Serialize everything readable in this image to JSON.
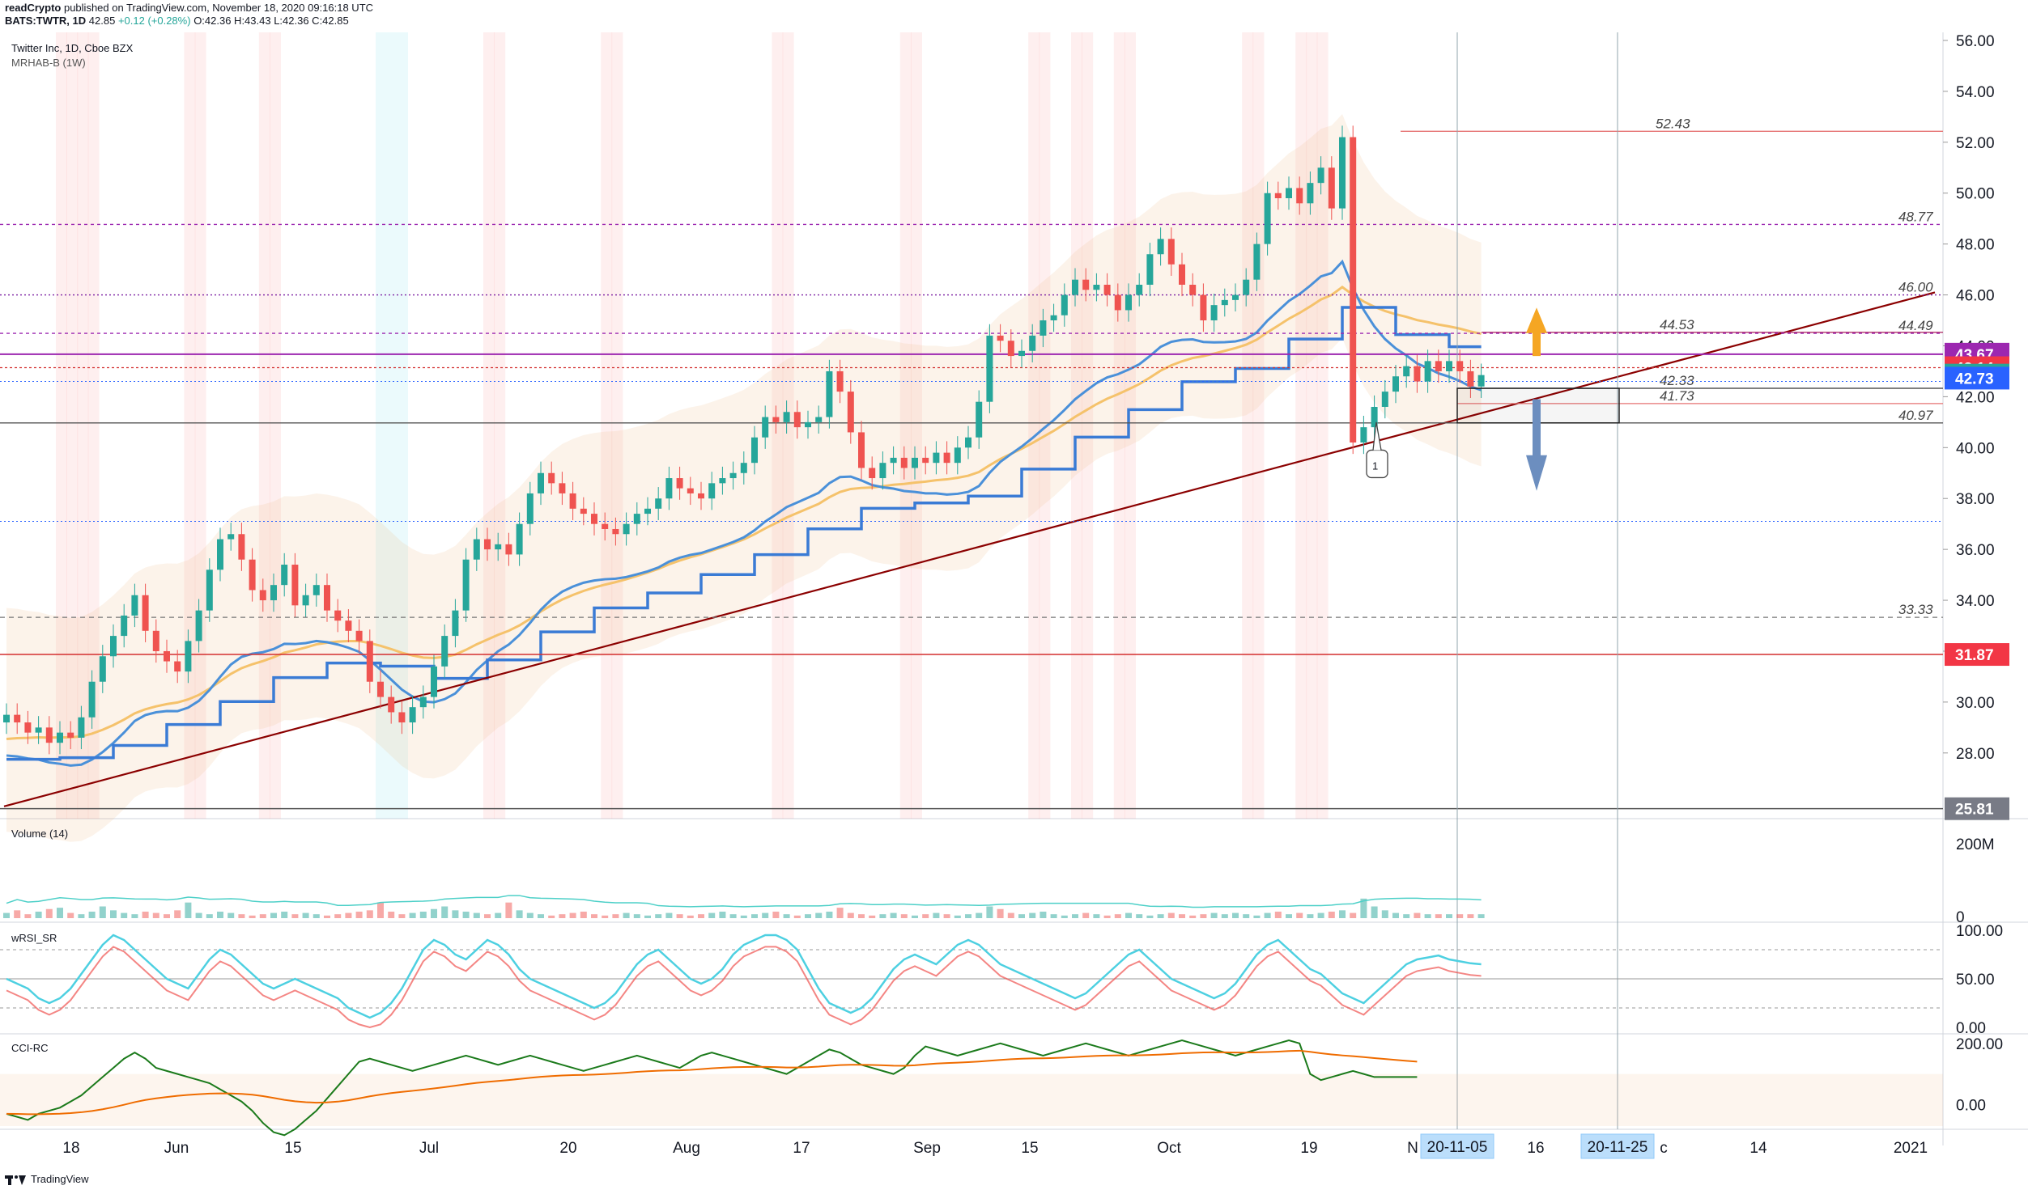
{
  "header": {
    "line1_user": "readCrypto",
    "line1_rest": " published on TradingView.com, November 18, 2020 09:16:18 UTC",
    "symbol": "BATS:TWTR, 1D",
    "last": "42.85",
    "change": "+0.12 (+0.28%)",
    "ohlc": "O:42.36 H:43.43 L:42.36 C:42.85"
  },
  "legend": {
    "title": "Twitter Inc, 1D, Cboe BZX",
    "indicator": "MRHAB-B (1W)"
  },
  "panes": {
    "volume": "Volume (14)",
    "wrsi": "wRSI_SR",
    "cci": "CCI-RC"
  },
  "colors": {
    "bull": "#26a69a",
    "bear": "#ef5350",
    "purple_badge": "#9c27b0",
    "red_badge": "#f23645",
    "green_badge": "#26a69a",
    "blue_badge": "#2962ff",
    "gray_badge": "#787b86",
    "trendline": "#8b0000",
    "ema_blue": "#4a90d9",
    "ema_yellow": "#f5c26b"
  },
  "footer": {
    "brand": "TradingView"
  },
  "chart_data": {
    "type": "candlestick",
    "price_axis": {
      "ylim": [
        25.8,
        56
      ],
      "ticks": [
        "56.00",
        "54.00",
        "52.00",
        "50.00",
        "48.00",
        "46.00",
        "44.00",
        "42.00",
        "40.00",
        "38.00",
        "36.00",
        "34.00",
        "32.00",
        "30.00",
        "28.00"
      ]
    },
    "x_axis_labels": [
      "18",
      "Jun",
      "15",
      "Jul",
      "20",
      "Aug",
      "17",
      "Sep",
      "15",
      "Oct",
      "19",
      "N",
      "16",
      "c",
      "14",
      "2021"
    ],
    "date_badges": [
      "20-11-05",
      "20-11-25"
    ],
    "price_badges": [
      {
        "label": "43.67",
        "value": 43.67,
        "color": "#9c27b0"
      },
      {
        "label": "43.14",
        "value": 43.14,
        "color": "#f23645"
      },
      {
        "label": "42.85",
        "value": 42.85,
        "color": "#26a69a"
      },
      {
        "label": "42.73",
        "value": 42.73,
        "color": "#2962ff"
      },
      {
        "label": "31.87",
        "value": 31.87,
        "color": "#f23645"
      },
      {
        "label": "25.81",
        "value": 25.81,
        "color": "#787b86"
      }
    ],
    "levels": [
      {
        "label": "52.43",
        "value": 52.43
      },
      {
        "label": "48.77",
        "value": 48.77
      },
      {
        "label": "46.00",
        "value": 46.0
      },
      {
        "label": "44.53",
        "value": 44.53
      },
      {
        "label": "44.49",
        "value": 44.49
      },
      {
        "label": "42.33",
        "value": 42.33
      },
      {
        "label": "41.73",
        "value": 41.73
      },
      {
        "label": "40.97",
        "value": 40.97
      },
      {
        "label": "33.33",
        "value": 33.33
      }
    ],
    "annotation": "1",
    "volume_axis": [
      "200M",
      "0"
    ],
    "wrsi_axis": [
      "100.00",
      "50.00",
      "0.00"
    ],
    "cci_axis": [
      "200.00",
      "0.00"
    ],
    "closes": [
      29.5,
      29.2,
      28.8,
      29.0,
      28.4,
      28.8,
      28.6,
      29.4,
      30.8,
      31.8,
      32.6,
      33.4,
      34.2,
      32.8,
      32.0,
      31.6,
      31.2,
      32.4,
      33.6,
      35.2,
      36.4,
      36.6,
      35.6,
      34.4,
      34.0,
      34.6,
      35.4,
      33.8,
      34.2,
      34.6,
      33.6,
      33.2,
      32.8,
      32.4,
      30.8,
      30.2,
      29.6,
      29.2,
      29.8,
      30.2,
      31.4,
      32.6,
      33.6,
      35.6,
      36.4,
      36.0,
      36.2,
      35.8,
      37.0,
      38.2,
      39.0,
      38.6,
      38.2,
      37.6,
      37.4,
      37.0,
      36.8,
      36.6,
      37.0,
      37.4,
      37.6,
      38.0,
      38.8,
      38.4,
      38.2,
      38.0,
      38.6,
      38.8,
      39.0,
      39.4,
      40.4,
      41.2,
      41.0,
      41.4,
      40.8,
      41.0,
      41.2,
      43.0,
      42.2,
      40.6,
      39.2,
      38.8,
      39.4,
      39.6,
      39.2,
      39.6,
      39.4,
      39.8,
      39.4,
      40.0,
      40.4,
      41.8,
      44.4,
      44.2,
      43.6,
      43.8,
      44.4,
      45.0,
      45.2,
      46.0,
      46.6,
      46.2,
      46.4,
      46.0,
      45.4,
      46.0,
      46.4,
      47.6,
      48.2,
      47.2,
      46.4,
      46.0,
      45.0,
      45.6,
      45.8,
      46.0,
      46.6,
      48.0,
      50.0,
      49.8,
      50.2,
      49.6,
      50.4,
      51.0,
      49.4,
      52.2,
      40.2,
      40.8,
      41.6,
      42.2,
      42.8,
      43.2,
      42.6,
      43.4,
      43.0,
      43.4,
      43.0,
      42.4,
      42.85
    ],
    "series": [
      {
        "name": "Volume (14)",
        "values": [
          40,
          60,
          30,
          50,
          70,
          80,
          40,
          30,
          50,
          90,
          60,
          40,
          30,
          50,
          40,
          30,
          60,
          120,
          40,
          30,
          50,
          40,
          30,
          20,
          30,
          40,
          50,
          30,
          40,
          30,
          20,
          30,
          40,
          50,
          60,
          120,
          50,
          30,
          40,
          50,
          70,
          90,
          60,
          50,
          40,
          30,
          40,
          120,
          60,
          40,
          30,
          20,
          30,
          40,
          50,
          30,
          20,
          30,
          40,
          30,
          20,
          30,
          40,
          30,
          20,
          30,
          40,
          50,
          30,
          20,
          30,
          40,
          50,
          30,
          20,
          30,
          40,
          50,
          80,
          40,
          30,
          20,
          30,
          40,
          30,
          20,
          30,
          40,
          30,
          20,
          30,
          40,
          90,
          70,
          40,
          30,
          40,
          50,
          30,
          20,
          30,
          40,
          30,
          20,
          30,
          40,
          30,
          20,
          30,
          40,
          30,
          20,
          30,
          40,
          30,
          40,
          30,
          20,
          40,
          50,
          30,
          40,
          30,
          40,
          50,
          60,
          40,
          150,
          90,
          60,
          40,
          30,
          40,
          30,
          30,
          30,
          30,
          30,
          30,
          30,
          30
        ]
      },
      {
        "name": "wRSI_SR",
        "values": [
          50,
          45,
          40,
          30,
          25,
          30,
          40,
          55,
          70,
          85,
          95,
          90,
          80,
          70,
          60,
          50,
          45,
          40,
          55,
          70,
          80,
          75,
          65,
          55,
          45,
          40,
          45,
          50,
          45,
          40,
          35,
          30,
          20,
          15,
          10,
          15,
          25,
          40,
          60,
          80,
          90,
          85,
          75,
          70,
          80,
          90,
          85,
          75,
          60,
          50,
          45,
          40,
          35,
          30,
          25,
          20,
          25,
          35,
          50,
          65,
          75,
          80,
          70,
          60,
          50,
          45,
          50,
          60,
          75,
          85,
          90,
          95,
          95,
          90,
          80,
          60,
          40,
          25,
          20,
          15,
          20,
          30,
          45,
          60,
          70,
          75,
          70,
          65,
          75,
          85,
          90,
          85,
          75,
          65,
          60,
          55,
          50,
          45,
          40,
          35,
          30,
          35,
          45,
          55,
          65,
          75,
          80,
          70,
          60,
          50,
          45,
          40,
          35,
          30,
          35,
          45,
          60,
          75,
          85,
          90,
          80,
          70,
          60,
          55,
          45,
          35,
          30,
          25,
          35,
          45,
          55,
          65,
          70,
          72,
          74,
          70,
          68,
          66,
          65
        ]
      },
      {
        "name": "CCI-RC",
        "values": [
          -30,
          -40,
          -50,
          -30,
          -20,
          -10,
          10,
          30,
          60,
          90,
          120,
          150,
          170,
          150,
          120,
          110,
          100,
          90,
          80,
          70,
          50,
          30,
          10,
          -20,
          -60,
          -90,
          -100,
          -80,
          -50,
          -20,
          20,
          60,
          100,
          140,
          150,
          140,
          130,
          120,
          110,
          120,
          130,
          140,
          150,
          160,
          150,
          140,
          130,
          140,
          150,
          160,
          150,
          140,
          130,
          120,
          110,
          120,
          130,
          140,
          150,
          160,
          150,
          140,
          130,
          120,
          140,
          160,
          170,
          160,
          150,
          140,
          130,
          120,
          110,
          100,
          120,
          140,
          160,
          180,
          170,
          150,
          130,
          120,
          110,
          100,
          120,
          160,
          190,
          180,
          170,
          160,
          170,
          180,
          190,
          200,
          190,
          180,
          170,
          160,
          170,
          180,
          190,
          200,
          190,
          180,
          170,
          160,
          170,
          180,
          190,
          200,
          210,
          200,
          190,
          180,
          170,
          160,
          170,
          180,
          190,
          200,
          210,
          200,
          100,
          80,
          90,
          100,
          110,
          100,
          90,
          90,
          90,
          90,
          90
        ]
      }
    ],
    "grid": true
  }
}
